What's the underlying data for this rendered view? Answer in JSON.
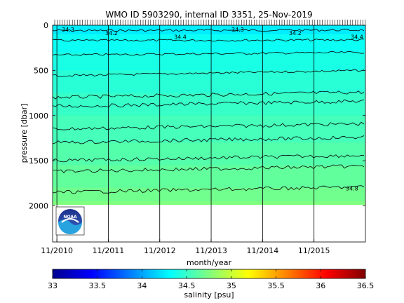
{
  "chart_data": [
    {
      "type": "heatmap",
      "title": "WMO ID 5903290, internal ID 3351, 25-Nov-2019",
      "xlabel": "month/year",
      "ylabel": "pressure [dbar]",
      "x_tick_labels": [
        "11/2010",
        "11/2011",
        "11/2012",
        "11/2013",
        "11/2014",
        "11/2015"
      ],
      "y_tick_labels": [
        "0",
        "500",
        "1000",
        "1500",
        "2000"
      ],
      "xlim": [
        "2010-10",
        "2016-11"
      ],
      "ylim": [
        2400,
        0
      ],
      "y_reversed": true,
      "salinity_by_depth": [
        {
          "pressure": 0,
          "salinity": 34.25
        },
        {
          "pressure": 100,
          "salinity": 34.35
        },
        {
          "pressure": 300,
          "salinity": 34.4
        },
        {
          "pressure": 500,
          "salinity": 34.45
        },
        {
          "pressure": 750,
          "salinity": 34.5
        },
        {
          "pressure": 1000,
          "salinity": 34.55
        },
        {
          "pressure": 1300,
          "salinity": 34.6
        },
        {
          "pressure": 1550,
          "salinity": 34.65
        },
        {
          "pressure": 1800,
          "salinity": 34.7
        },
        {
          "pressure": 1950,
          "salinity": 34.75
        }
      ],
      "contour_label_samples": [
        "34.3",
        "34.2",
        "34.4",
        "34.8"
      ],
      "vertical_lines_at": [
        "11/2010",
        "11/2011",
        "11/2012",
        "11/2013",
        "11/2014",
        "11/2015"
      ],
      "grid": false
    },
    {
      "type": "colorbar",
      "xlabel": "salinity [psu]",
      "tick_labels": [
        "33",
        "33.5",
        "34",
        "34.5",
        "35",
        "35.5",
        "36",
        "36.5"
      ],
      "range": [
        33,
        36.5
      ],
      "colormap": "jet"
    }
  ],
  "logo": {
    "icon": "noaa-logo-icon",
    "text": "NOAA"
  }
}
